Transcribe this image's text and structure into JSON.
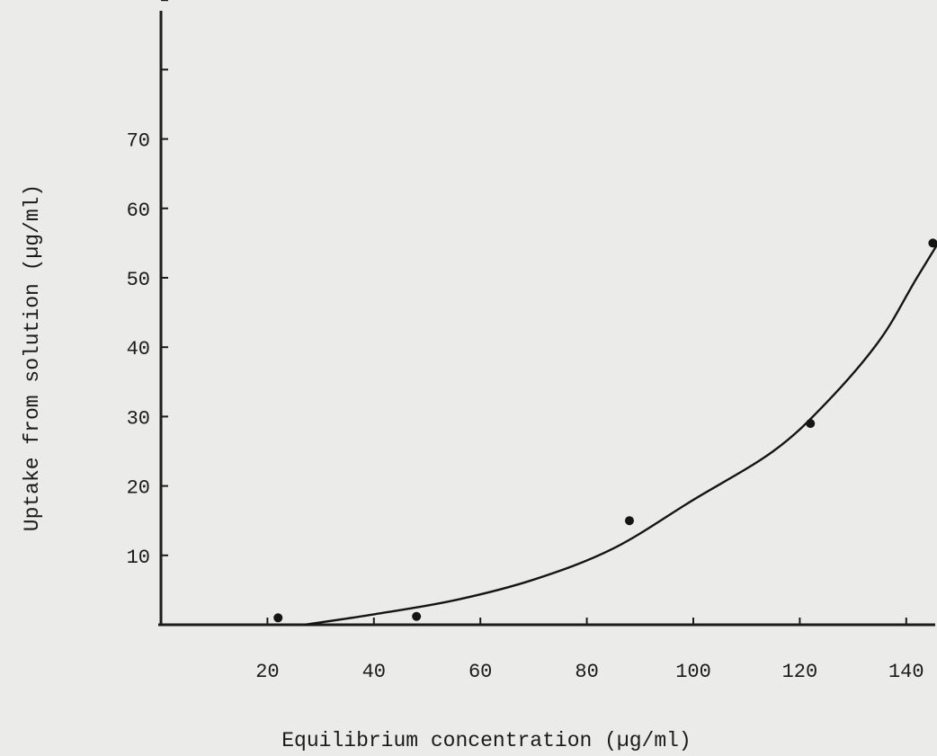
{
  "chart_data": {
    "type": "scatter",
    "title": "",
    "xlabel": "Equilibrium concentration (µg/ml)",
    "ylabel": "Uptake from solution (µg/ml)",
    "xlim": [
      0,
      150
    ],
    "ylim": [
      0,
      90
    ],
    "x_ticks": [
      20,
      40,
      60,
      80,
      100,
      120,
      140
    ],
    "y_ticks": [
      10,
      20,
      30,
      40,
      50,
      60,
      70
    ],
    "x_tick_labels": [
      "20",
      "40",
      "60",
      "80",
      "100",
      "120",
      "140"
    ],
    "y_tick_labels": [
      "10",
      "20",
      "30",
      "40",
      "50",
      "60",
      "70"
    ],
    "grid": false,
    "series": [
      {
        "points": [
          {
            "x": 22,
            "y": 1
          },
          {
            "x": 48,
            "y": 1.2
          },
          {
            "x": 88,
            "y": 15
          },
          {
            "x": 122,
            "y": 29
          },
          {
            "x": 145,
            "y": 55
          }
        ]
      }
    ],
    "fit_curve": {
      "x": [
        27,
        40,
        55,
        70,
        85,
        100,
        115,
        125,
        135,
        142,
        150
      ],
      "y": [
        0,
        1.5,
        3.5,
        6.5,
        11,
        18,
        25,
        32,
        41,
        50,
        60
      ]
    },
    "colors": {
      "ink": "#151515",
      "paper": "#ebebe9"
    }
  }
}
